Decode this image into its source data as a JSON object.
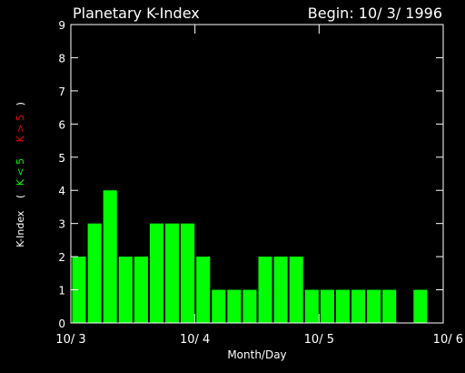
{
  "header": {
    "title": "Planetary K-Index",
    "begin": "Begin: 10/ 3/ 1996"
  },
  "ylabel": {
    "main": "K-Index",
    "open": "(",
    "low": "K < 5",
    "high": "K > 5",
    "close": ")"
  },
  "colors": {
    "background": "#000000",
    "axis": "#ffffff",
    "low_bar": "#00ff00",
    "high_bar": "#ff0000",
    "low_label": "#00ff00",
    "high_label": "#ff0000"
  },
  "chart_data": {
    "type": "bar",
    "title": "Planetary K-Index",
    "xlabel": "Month/Day",
    "ylabel": "K-Index",
    "ylim": [
      0,
      9
    ],
    "yticks": [
      0,
      1,
      2,
      3,
      4,
      5,
      6,
      7,
      8,
      9
    ],
    "xlim": [
      0,
      24
    ],
    "xticks": [
      {
        "pos": 0,
        "label": "10/ 3"
      },
      {
        "pos": 8,
        "label": "10/ 4"
      },
      {
        "pos": 16,
        "label": "10/ 5"
      },
      {
        "pos": 24,
        "label": "10/ 6"
      }
    ],
    "values": [
      2,
      3,
      4,
      2,
      2,
      3,
      3,
      3,
      2,
      1,
      1,
      1,
      2,
      2,
      2,
      1,
      1,
      1,
      1,
      1,
      1,
      null,
      1,
      null
    ]
  }
}
